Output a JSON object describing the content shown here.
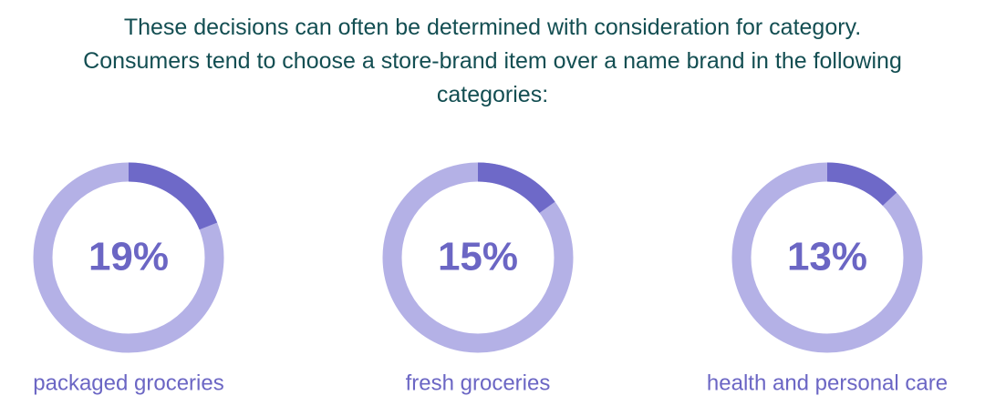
{
  "title": "These decisions can often be determined with consideration for category. Consumers tend to choose a store-brand item over a name brand in the following categories:",
  "chart_data": [
    {
      "type": "donut",
      "label": "packaged groceries",
      "values": [
        19
      ],
      "value_labels": [
        "19%"
      ],
      "color": "#6e69c8",
      "track_color": "#b4b1e6"
    },
    {
      "type": "donut",
      "label": "fresh groceries",
      "values": [
        15
      ],
      "value_labels": [
        "15%"
      ],
      "color": "#6e69c8",
      "track_color": "#b4b1e6"
    },
    {
      "type": "donut",
      "label": "health and personal care",
      "values": [
        13
      ],
      "value_labels": [
        "13%"
      ],
      "color": "#6e69c8",
      "track_color": "#b4b1e6"
    }
  ]
}
